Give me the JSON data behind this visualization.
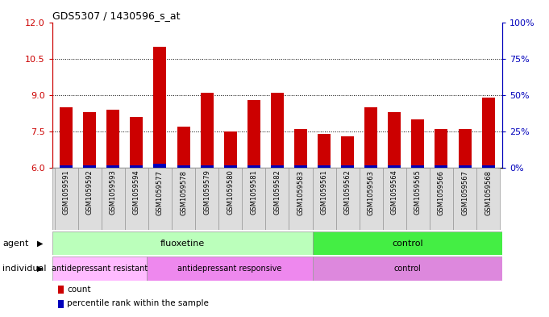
{
  "title": "GDS5307 / 1430596_s_at",
  "samples": [
    "GSM1059591",
    "GSM1059592",
    "GSM1059593",
    "GSM1059594",
    "GSM1059577",
    "GSM1059578",
    "GSM1059579",
    "GSM1059580",
    "GSM1059581",
    "GSM1059582",
    "GSM1059583",
    "GSM1059561",
    "GSM1059562",
    "GSM1059563",
    "GSM1059564",
    "GSM1059565",
    "GSM1059566",
    "GSM1059567",
    "GSM1059568"
  ],
  "red_values": [
    8.5,
    8.3,
    8.4,
    8.1,
    11.0,
    7.7,
    9.1,
    7.5,
    8.8,
    9.1,
    7.6,
    7.4,
    7.3,
    8.5,
    8.3,
    8.0,
    7.6,
    7.6,
    8.9
  ],
  "blue_values": [
    0.1,
    0.1,
    0.1,
    0.1,
    0.18,
    0.1,
    0.1,
    0.1,
    0.1,
    0.1,
    0.1,
    0.1,
    0.1,
    0.1,
    0.1,
    0.1,
    0.1,
    0.1,
    0.1
  ],
  "ylim_left": [
    6,
    12
  ],
  "ylim_right": [
    0,
    100
  ],
  "yticks_left": [
    6,
    7.5,
    9,
    10.5,
    12
  ],
  "yticks_right": [
    0,
    25,
    50,
    75,
    100
  ],
  "ytick_labels_right": [
    "0%",
    "25%",
    "50%",
    "75%",
    "100%"
  ],
  "bar_bottom": 6.0,
  "bar_width": 0.55,
  "red_color": "#cc0000",
  "blue_color": "#0000bb",
  "bg_color": "#ffffff",
  "plot_bg_color": "#ffffff",
  "agent_fluoxetine_color": "#bbffbb",
  "agent_control_color": "#44ee44",
  "indiv_resistant_color": "#ffbbff",
  "indiv_responsive_color": "#ee88ee",
  "indiv_control_color": "#dd88dd",
  "agent_groups": [
    {
      "label": "fluoxetine",
      "start": 0,
      "end": 11,
      "color": "#bbffbb"
    },
    {
      "label": "control",
      "start": 11,
      "end": 19,
      "color": "#44ee44"
    }
  ],
  "individual_groups": [
    {
      "label": "antidepressant resistant",
      "start": 0,
      "end": 4,
      "color": "#ffbbff"
    },
    {
      "label": "antidepressant responsive",
      "start": 4,
      "end": 11,
      "color": "#ee88ee"
    },
    {
      "label": "control",
      "start": 11,
      "end": 19,
      "color": "#dd88dd"
    }
  ],
  "xlabel_agent": "agent",
  "xlabel_individual": "individual",
  "legend_items": [
    {
      "label": "count",
      "color": "#cc0000"
    },
    {
      "label": "percentile rank within the sample",
      "color": "#0000bb"
    }
  ]
}
